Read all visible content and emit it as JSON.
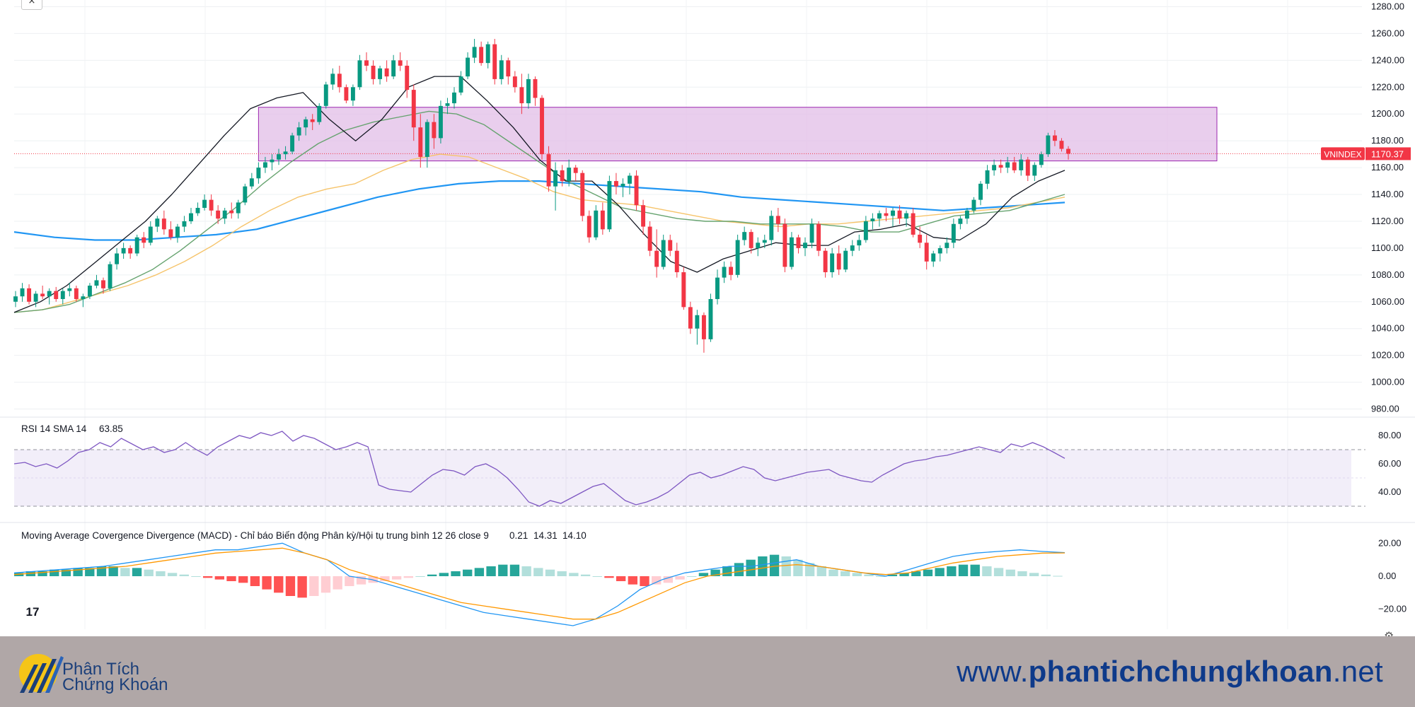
{
  "window": {
    "close_glyph": "×"
  },
  "tv_logo": {
    "text": "17"
  },
  "price_axis": {
    "ticks": [
      "1260.00",
      "1240.00",
      "1220.00",
      "1200.00",
      "1180.00",
      "1160.00",
      "1140.00",
      "1120.00",
      "1100.00",
      "1080.00",
      "1060.00",
      "1040.00",
      "1020.00",
      "1000.00",
      "980.00"
    ],
    "top_partial": "1280.00"
  },
  "symbol_badge": {
    "name": "VNINDEX",
    "value": "1170.37",
    "color": "#f23645"
  },
  "rsi": {
    "title": "RSI 14 SMA 14",
    "value": "63.85",
    "ticks": [
      "80.00",
      "60.00",
      "40.00"
    ],
    "color": "#7e57c2"
  },
  "macd": {
    "title": "Moving Average Covergence Divergence (MACD) - Chỉ báo Biến động Phân kỳ/Hội tụ trung bình 12 26 close 9",
    "hist_value": "0.21",
    "macd_value": "14.31",
    "signal_value": "14.10",
    "ticks": [
      "20.00",
      "0.00",
      "−20.00"
    ],
    "colors": {
      "hist": "#26a69a",
      "macd": "#2196f3",
      "signal": "#ff9800"
    }
  },
  "colors": {
    "up": "#089981",
    "down": "#f23645",
    "zone_fill": "#e1bee7",
    "zone_stroke": "#9c27b0",
    "ma_fast": "#131722",
    "ma_mid": "#66a36f",
    "ma_orange": "#f6c46b",
    "ma_blue": "#2196f3"
  },
  "footer": {
    "brand_line1": "Phân Tích",
    "brand_line2": "Chứng Khoán",
    "url_prefix": "www.",
    "url_main": "phantichchungkhoan",
    "url_suffix": ".net"
  },
  "chart_data": {
    "type": "candlestick",
    "symbol": "VNINDEX",
    "y_range": [
      975,
      1285
    ],
    "last_price": 1170.37,
    "resistance_zone": {
      "low": 1165,
      "high": 1205,
      "start_index": 36,
      "end_index": 171
    },
    "candles_ohlc": [
      [
        1060,
        1068,
        1056,
        1064
      ],
      [
        1064,
        1074,
        1060,
        1070
      ],
      [
        1070,
        1073,
        1058,
        1060
      ],
      [
        1060,
        1068,
        1056,
        1066
      ],
      [
        1066,
        1072,
        1062,
        1064
      ],
      [
        1064,
        1070,
        1058,
        1068
      ],
      [
        1068,
        1071,
        1060,
        1062
      ],
      [
        1062,
        1070,
        1058,
        1068
      ],
      [
        1068,
        1074,
        1064,
        1070
      ],
      [
        1070,
        1072,
        1060,
        1062
      ],
      [
        1062,
        1066,
        1056,
        1064
      ],
      [
        1064,
        1074,
        1062,
        1072
      ],
      [
        1072,
        1080,
        1070,
        1076
      ],
      [
        1076,
        1078,
        1066,
        1070
      ],
      [
        1070,
        1090,
        1068,
        1088
      ],
      [
        1088,
        1100,
        1084,
        1096
      ],
      [
        1096,
        1104,
        1092,
        1100
      ],
      [
        1100,
        1102,
        1092,
        1096
      ],
      [
        1096,
        1110,
        1094,
        1108
      ],
      [
        1108,
        1112,
        1100,
        1104
      ],
      [
        1104,
        1120,
        1102,
        1116
      ],
      [
        1116,
        1124,
        1112,
        1122
      ],
      [
        1122,
        1128,
        1110,
        1114
      ],
      [
        1114,
        1120,
        1106,
        1108
      ],
      [
        1108,
        1118,
        1104,
        1116
      ],
      [
        1116,
        1124,
        1112,
        1120
      ],
      [
        1120,
        1130,
        1118,
        1126
      ],
      [
        1126,
        1134,
        1124,
        1130
      ],
      [
        1130,
        1140,
        1128,
        1136
      ],
      [
        1136,
        1140,
        1124,
        1128
      ],
      [
        1128,
        1132,
        1118,
        1122
      ],
      [
        1122,
        1130,
        1118,
        1128
      ],
      [
        1128,
        1134,
        1122,
        1126
      ],
      [
        1126,
        1136,
        1122,
        1134
      ],
      [
        1134,
        1148,
        1132,
        1146
      ],
      [
        1146,
        1156,
        1144,
        1152
      ],
      [
        1152,
        1164,
        1148,
        1160
      ],
      [
        1160,
        1168,
        1156,
        1164
      ],
      [
        1164,
        1170,
        1158,
        1166
      ],
      [
        1166,
        1174,
        1162,
        1170
      ],
      [
        1170,
        1176,
        1166,
        1172
      ],
      [
        1172,
        1186,
        1170,
        1184
      ],
      [
        1184,
        1194,
        1180,
        1190
      ],
      [
        1190,
        1198,
        1184,
        1196
      ],
      [
        1196,
        1200,
        1188,
        1194
      ],
      [
        1194,
        1208,
        1192,
        1206
      ],
      [
        1206,
        1224,
        1204,
        1222
      ],
      [
        1222,
        1234,
        1218,
        1230
      ],
      [
        1230,
        1236,
        1216,
        1220
      ],
      [
        1220,
        1222,
        1208,
        1210
      ],
      [
        1210,
        1222,
        1206,
        1220
      ],
      [
        1220,
        1244,
        1218,
        1240
      ],
      [
        1240,
        1246,
        1232,
        1236
      ],
      [
        1236,
        1240,
        1222,
        1226
      ],
      [
        1226,
        1236,
        1222,
        1234
      ],
      [
        1234,
        1240,
        1224,
        1228
      ],
      [
        1228,
        1244,
        1226,
        1240
      ],
      [
        1240,
        1246,
        1232,
        1236
      ],
      [
        1236,
        1240,
        1212,
        1218
      ],
      [
        1218,
        1222,
        1180,
        1190
      ],
      [
        1190,
        1200,
        1160,
        1168
      ],
      [
        1168,
        1196,
        1160,
        1194
      ],
      [
        1194,
        1200,
        1174,
        1182
      ],
      [
        1182,
        1210,
        1178,
        1206
      ],
      [
        1206,
        1212,
        1200,
        1208
      ],
      [
        1208,
        1220,
        1204,
        1216
      ],
      [
        1216,
        1232,
        1214,
        1228
      ],
      [
        1228,
        1246,
        1226,
        1242
      ],
      [
        1242,
        1256,
        1238,
        1250
      ],
      [
        1250,
        1254,
        1236,
        1238
      ],
      [
        1238,
        1254,
        1234,
        1252
      ],
      [
        1252,
        1256,
        1222,
        1226
      ],
      [
        1226,
        1244,
        1222,
        1240
      ],
      [
        1240,
        1242,
        1222,
        1228
      ],
      [
        1228,
        1232,
        1216,
        1220
      ],
      [
        1220,
        1230,
        1200,
        1208
      ],
      [
        1208,
        1230,
        1204,
        1226
      ],
      [
        1226,
        1228,
        1206,
        1212
      ],
      [
        1212,
        1214,
        1166,
        1170
      ],
      [
        1170,
        1176,
        1142,
        1146
      ],
      [
        1146,
        1164,
        1128,
        1158
      ],
      [
        1158,
        1162,
        1146,
        1150
      ],
      [
        1150,
        1166,
        1146,
        1160
      ],
      [
        1160,
        1162,
        1150,
        1156
      ],
      [
        1156,
        1158,
        1120,
        1124
      ],
      [
        1124,
        1128,
        1104,
        1108
      ],
      [
        1108,
        1132,
        1106,
        1128
      ],
      [
        1128,
        1134,
        1110,
        1114
      ],
      [
        1114,
        1154,
        1112,
        1150
      ],
      [
        1150,
        1156,
        1140,
        1146
      ],
      [
        1146,
        1152,
        1138,
        1148
      ],
      [
        1148,
        1156,
        1140,
        1154
      ],
      [
        1154,
        1158,
        1128,
        1132
      ],
      [
        1132,
        1136,
        1110,
        1116
      ],
      [
        1116,
        1120,
        1094,
        1098
      ],
      [
        1098,
        1114,
        1078,
        1086
      ],
      [
        1086,
        1110,
        1084,
        1106
      ],
      [
        1106,
        1110,
        1094,
        1098
      ],
      [
        1098,
        1104,
        1078,
        1082
      ],
      [
        1082,
        1086,
        1054,
        1056
      ],
      [
        1056,
        1060,
        1036,
        1040
      ],
      [
        1040,
        1054,
        1028,
        1050
      ],
      [
        1050,
        1052,
        1022,
        1032
      ],
      [
        1032,
        1066,
        1030,
        1062
      ],
      [
        1062,
        1084,
        1058,
        1078
      ],
      [
        1078,
        1090,
        1074,
        1086
      ],
      [
        1086,
        1090,
        1076,
        1080
      ],
      [
        1080,
        1110,
        1078,
        1106
      ],
      [
        1106,
        1116,
        1102,
        1112
      ],
      [
        1112,
        1114,
        1096,
        1100
      ],
      [
        1100,
        1108,
        1094,
        1104
      ],
      [
        1104,
        1110,
        1100,
        1106
      ],
      [
        1106,
        1128,
        1102,
        1124
      ],
      [
        1124,
        1130,
        1112,
        1118
      ],
      [
        1118,
        1122,
        1082,
        1086
      ],
      [
        1086,
        1112,
        1084,
        1108
      ],
      [
        1108,
        1110,
        1096,
        1100
      ],
      [
        1100,
        1108,
        1094,
        1104
      ],
      [
        1104,
        1122,
        1100,
        1118
      ],
      [
        1118,
        1120,
        1094,
        1098
      ],
      [
        1098,
        1100,
        1078,
        1082
      ],
      [
        1082,
        1100,
        1078,
        1096
      ],
      [
        1096,
        1102,
        1080,
        1084
      ],
      [
        1084,
        1100,
        1082,
        1098
      ],
      [
        1098,
        1106,
        1094,
        1102
      ],
      [
        1102,
        1110,
        1098,
        1106
      ],
      [
        1106,
        1124,
        1104,
        1120
      ],
      [
        1120,
        1126,
        1114,
        1122
      ],
      [
        1122,
        1128,
        1116,
        1126
      ],
      [
        1126,
        1130,
        1120,
        1124
      ],
      [
        1124,
        1130,
        1116,
        1128
      ],
      [
        1128,
        1132,
        1118,
        1122
      ],
      [
        1122,
        1128,
        1116,
        1126
      ],
      [
        1126,
        1130,
        1108,
        1110
      ],
      [
        1110,
        1116,
        1100,
        1104
      ],
      [
        1104,
        1110,
        1084,
        1090
      ],
      [
        1090,
        1098,
        1086,
        1096
      ],
      [
        1096,
        1102,
        1090,
        1100
      ],
      [
        1100,
        1108,
        1096,
        1104
      ],
      [
        1104,
        1122,
        1100,
        1118
      ],
      [
        1118,
        1124,
        1114,
        1122
      ],
      [
        1122,
        1130,
        1118,
        1128
      ],
      [
        1128,
        1138,
        1126,
        1136
      ],
      [
        1136,
        1150,
        1132,
        1148
      ],
      [
        1148,
        1162,
        1144,
        1158
      ],
      [
        1158,
        1166,
        1154,
        1162
      ],
      [
        1162,
        1166,
        1156,
        1160
      ],
      [
        1160,
        1168,
        1156,
        1164
      ],
      [
        1164,
        1168,
        1156,
        1158
      ],
      [
        1158,
        1170,
        1154,
        1166
      ],
      [
        1166,
        1168,
        1150,
        1154
      ],
      [
        1154,
        1164,
        1150,
        1162
      ],
      [
        1162,
        1172,
        1160,
        1170
      ],
      [
        1170,
        1186,
        1168,
        1184
      ],
      [
        1184,
        1188,
        1176,
        1180
      ],
      [
        1180,
        1182,
        1172,
        1174
      ],
      [
        1174,
        1176,
        1166,
        1170.37
      ]
    ],
    "moving_averages": {
      "ma_fast": [
        1052,
        1060,
        1072,
        1088,
        1104,
        1120,
        1140,
        1162,
        1184,
        1204,
        1212,
        1216,
        1196,
        1180,
        1196,
        1220,
        1228,
        1228,
        1210,
        1190,
        1166,
        1150,
        1150,
        1132,
        1110,
        1090,
        1082,
        1092,
        1098,
        1104,
        1102,
        1102,
        1112,
        1114,
        1118,
        1108,
        1106,
        1118,
        1138,
        1150,
        1158
      ],
      "ma_mid": [
        1052,
        1054,
        1058,
        1066,
        1074,
        1084,
        1098,
        1114,
        1130,
        1148,
        1164,
        1178,
        1188,
        1194,
        1198,
        1202,
        1200,
        1192,
        1178,
        1164,
        1150,
        1140,
        1130,
        1126,
        1122,
        1120,
        1120,
        1118,
        1118,
        1118,
        1116,
        1112,
        1112,
        1118,
        1124,
        1126,
        1128,
        1134,
        1140
      ],
      "ma_orange": [
        1052,
        1054,
        1060,
        1066,
        1072,
        1080,
        1090,
        1102,
        1116,
        1128,
        1138,
        1144,
        1148,
        1158,
        1166,
        1170,
        1168,
        1160,
        1152,
        1142,
        1136,
        1134,
        1132,
        1128,
        1124,
        1120,
        1118,
        1116,
        1118,
        1118,
        1120,
        1122,
        1124,
        1126,
        1128,
        1130,
        1134,
        1138
      ],
      "ma_blue": [
        1112,
        1108,
        1106,
        1106,
        1108,
        1110,
        1114,
        1122,
        1130,
        1138,
        1144,
        1148,
        1150,
        1150,
        1148,
        1146,
        1144,
        1142,
        1138,
        1136,
        1134,
        1132,
        1130,
        1128,
        1130,
        1132,
        1134
      ]
    },
    "rsi_series": [
      60,
      61,
      58,
      60,
      57,
      62,
      68,
      70,
      75,
      72,
      78,
      74,
      70,
      72,
      68,
      70,
      75,
      70,
      66,
      72,
      76,
      80,
      78,
      82,
      80,
      83,
      76,
      80,
      78,
      74,
      70,
      72,
      75,
      72,
      45,
      42,
      41,
      40,
      46,
      52,
      56,
      55,
      52,
      58,
      60,
      56,
      50,
      42,
      33,
      30,
      34,
      32,
      36,
      40,
      44,
      46,
      40,
      34,
      31,
      33,
      36,
      40,
      46,
      52,
      54,
      50,
      52,
      55,
      58,
      56,
      50,
      48,
      50,
      52,
      54,
      55,
      56,
      52,
      50,
      48,
      47,
      52,
      56,
      60,
      62,
      63,
      65,
      66,
      68,
      70,
      72,
      70,
      68,
      74,
      72,
      75,
      72,
      68,
      63.85
    ],
    "rsi_band": [
      30,
      70
    ],
    "macd_hist": [
      2,
      3,
      3,
      4,
      4,
      5,
      5,
      6,
      6,
      5,
      5,
      4,
      3,
      2,
      1,
      0,
      -1,
      -2,
      -3,
      -4,
      -6,
      -8,
      -10,
      -12,
      -13,
      -12,
      -10,
      -8,
      -6,
      -5,
      -4,
      -3,
      -2,
      -1,
      0,
      1,
      2,
      3,
      4,
      5,
      6,
      7,
      7,
      6,
      5,
      4,
      3,
      2,
      1,
      0,
      -1,
      -3,
      -5,
      -6,
      -5,
      -4,
      -2,
      0,
      2,
      4,
      6,
      8,
      10,
      12,
      13,
      12,
      10,
      8,
      6,
      4,
      3,
      2,
      1,
      0,
      1,
      2,
      3,
      4,
      5,
      6,
      7,
      7,
      6,
      5,
      4,
      3,
      2,
      1,
      0.21
    ],
    "macd_line": [
      2,
      3,
      4,
      5,
      6,
      8,
      10,
      12,
      14,
      16,
      16,
      18,
      20,
      14,
      10,
      0,
      -2,
      -6,
      -10,
      -14,
      -18,
      -22,
      -24,
      -26,
      -28,
      -30,
      -26,
      -18,
      -8,
      -2,
      2,
      4,
      6,
      6,
      8,
      10,
      6,
      4,
      2,
      0,
      4,
      8,
      12,
      14,
      15,
      16,
      15,
      14.31
    ],
    "signal_line": [
      1,
      2,
      3,
      4,
      5,
      6,
      8,
      10,
      12,
      14,
      15,
      16,
      17,
      14,
      10,
      4,
      0,
      -4,
      -8,
      -12,
      -16,
      -18,
      -20,
      -22,
      -24,
      -26,
      -26,
      -22,
      -16,
      -10,
      -4,
      0,
      2,
      4,
      6,
      7,
      6,
      4,
      2,
      1,
      2,
      5,
      8,
      10,
      12,
      13,
      14,
      14.1
    ],
    "macd_range": [
      -30,
      30
    ]
  }
}
